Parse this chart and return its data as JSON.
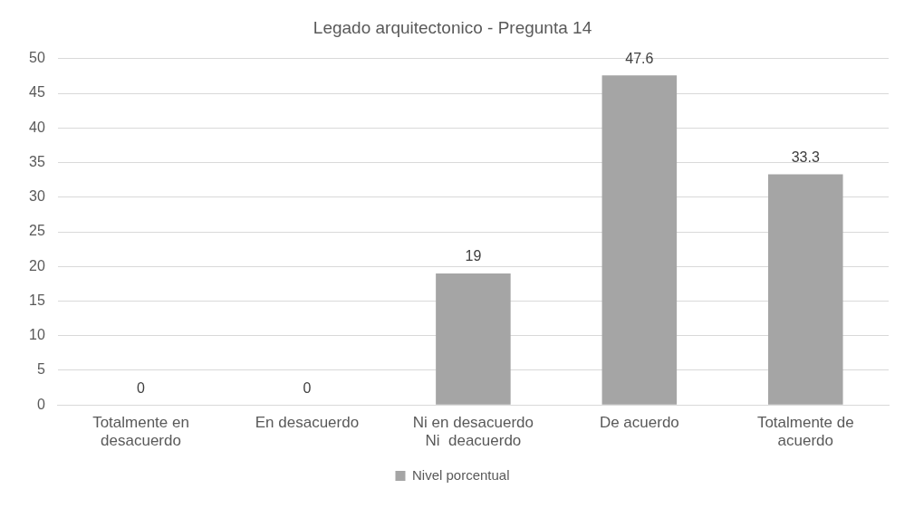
{
  "chart_data": {
    "type": "bar",
    "title": "Legado arquitectonico - Pregunta 14",
    "categories": [
      "Totalmente en desacuerdo",
      "En desacuerdo",
      "Ni en desacuerdo Ni  deacuerdo",
      "De acuerdo",
      "Totalmente de acuerdo"
    ],
    "series": [
      {
        "name": "Nivel porcentual",
        "color": "#a5a5a5",
        "values": [
          0,
          0,
          19,
          47.6,
          33.3
        ]
      }
    ],
    "ylim": [
      0,
      50
    ],
    "yticks": [
      0,
      5,
      10,
      15,
      20,
      25,
      30,
      35,
      40,
      45,
      50
    ],
    "grid": "y",
    "legend": "bottom",
    "data_labels": true
  }
}
